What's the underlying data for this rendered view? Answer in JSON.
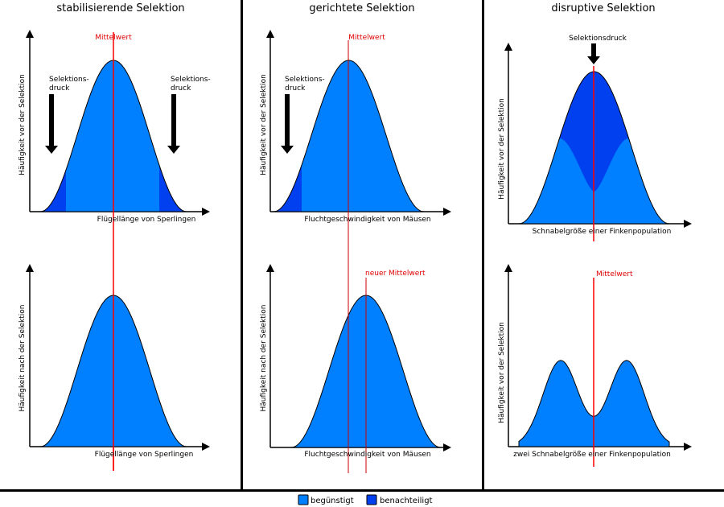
{
  "colors": {
    "favored": "#0080ff",
    "disadvantaged": "#0040ee",
    "mean": "#ff0000",
    "mean_dark": "#cc0000"
  },
  "panels": [
    {
      "title": "stabilisierende Selektion",
      "top": {
        "ylabel": "Häufigkeit vor der Selektion",
        "xlabel": "Flügellänge von Sperlingen",
        "mean_label": "Mittelwert",
        "pressure_left": [
          "Selektions-",
          "druck"
        ],
        "pressure_right": [
          "Selektions-",
          "druck"
        ]
      },
      "bottom": {
        "ylabel": "Häufigkeit nach der Selektion",
        "xlabel": "Flügellänge von Sperlingen"
      }
    },
    {
      "title": "gerichtete Selektion",
      "top": {
        "ylabel": "Häufigkeit vor der Selektion",
        "xlabel": "Fluchtgeschwindigkeit von Mäusen",
        "mean_label": "Mittelwert",
        "pressure_left": [
          "Selektions-",
          "druck"
        ]
      },
      "bottom": {
        "ylabel": "Häufigkeit nach der Selektion",
        "xlabel": "Fluchtgeschwindigkeit von Mäusen",
        "mean_label": "neuer Mittelwert"
      }
    },
    {
      "title": "disruptive Selektion",
      "top": {
        "ylabel": "Häufigkeit vor der Selektion",
        "xlabel": "Schnabelgröße einer Finkenpopulation",
        "pressure_label": "Selektionsdruck"
      },
      "bottom": {
        "ylabel": "Häufigkeit vor der Selektion",
        "xlabel": "zwei Schnabelgröße einer Finkenpopulation",
        "mean_label": "Mittelwert"
      }
    }
  ],
  "legend": [
    {
      "label": "begünstigt",
      "color": "#0080ff"
    },
    {
      "label": "benachteiligt",
      "color": "#0040ee"
    }
  ]
}
